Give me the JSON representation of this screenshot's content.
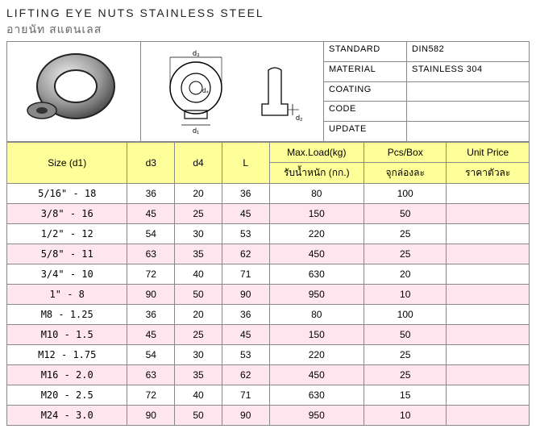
{
  "title_en": "LIFTING EYE NUTS STAINLESS STEEL",
  "title_th": "อายนัท  สแตนเลส",
  "meta": {
    "standard_label": "STANDARD",
    "standard_value": "DIN582",
    "material_label": "MATERIAL",
    "material_value": "STAINLESS 304",
    "coating_label": "COATING",
    "coating_value": "",
    "code_label": "CODE",
    "code_value": "",
    "update_label": "UPDATE",
    "update_value": ""
  },
  "diagram_labels": {
    "d1": "d₁",
    "d2": "d₂",
    "d3": "d₃",
    "d4": "d₄"
  },
  "columns": {
    "size_en": "Size (d1)",
    "size_th": "",
    "d3": "d3",
    "d4": "d4",
    "L": "L",
    "load_en": "Max.Load(kg)",
    "load_th": "รับน้ำหนัก (กก.)",
    "pcs_en": "Pcs/Box",
    "pcs_th": "จุกล่องละ",
    "price_en": "Unit Price",
    "price_th": "ราคาตัวละ"
  },
  "rows": [
    {
      "size": "5/16\" - 18",
      "d3": "36",
      "d4": "20",
      "L": "36",
      "load": "80",
      "pcs": "100",
      "price": ""
    },
    {
      "size": "3/8\"  - 16",
      "d3": "45",
      "d4": "25",
      "L": "45",
      "load": "150",
      "pcs": "50",
      "price": ""
    },
    {
      "size": "1/2\"  - 12",
      "d3": "54",
      "d4": "30",
      "L": "53",
      "load": "220",
      "pcs": "25",
      "price": ""
    },
    {
      "size": "5/8\"  - 11",
      "d3": "63",
      "d4": "35",
      "L": "62",
      "load": "450",
      "pcs": "25",
      "price": ""
    },
    {
      "size": "3/4\"  - 10",
      "d3": "72",
      "d4": "40",
      "L": "71",
      "load": "630",
      "pcs": "20",
      "price": ""
    },
    {
      "size": "  1\"  -  8",
      "d3": "90",
      "d4": "50",
      "L": "90",
      "load": "950",
      "pcs": "10",
      "price": ""
    },
    {
      "size": "  M8  - 1.25",
      "d3": "36",
      "d4": "20",
      "L": "36",
      "load": "80",
      "pcs": "100",
      "price": ""
    },
    {
      "size": " M10  - 1.5",
      "d3": "45",
      "d4": "25",
      "L": "45",
      "load": "150",
      "pcs": "50",
      "price": ""
    },
    {
      "size": " M12  - 1.75",
      "d3": "54",
      "d4": "30",
      "L": "53",
      "load": "220",
      "pcs": "25",
      "price": ""
    },
    {
      "size": " M16  - 2.0",
      "d3": "63",
      "d4": "35",
      "L": "62",
      "load": "450",
      "pcs": "25",
      "price": ""
    },
    {
      "size": " M20  - 2.5",
      "d3": "72",
      "d4": "40",
      "L": "71",
      "load": "630",
      "pcs": "15",
      "price": ""
    },
    {
      "size": " M24  - 3.0",
      "d3": "90",
      "d4": "50",
      "L": "90",
      "load": "950",
      "pcs": "10",
      "price": ""
    }
  ],
  "style": {
    "header_bg": "#ffff99",
    "odd_bg": "#ffffff",
    "even_bg": "#ffe6ee",
    "border": "#888888",
    "title_th_color": "#666666"
  }
}
